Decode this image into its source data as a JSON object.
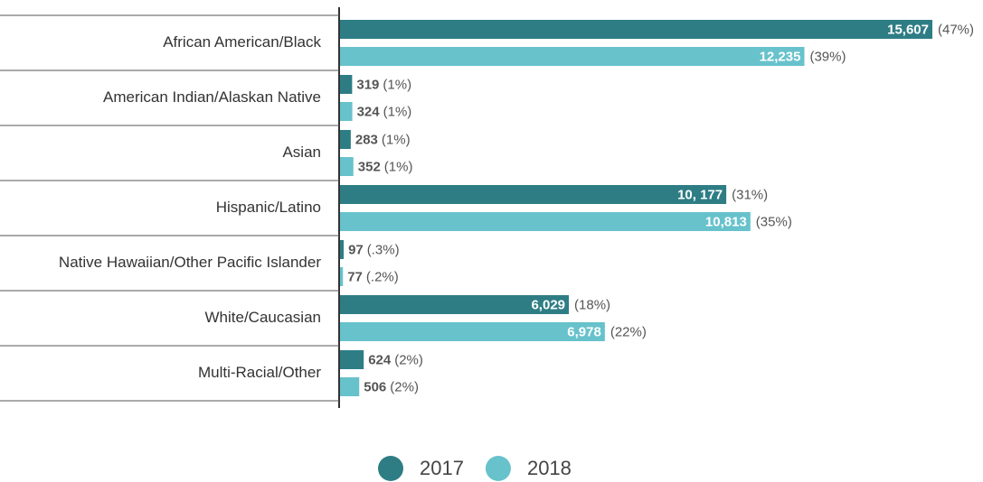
{
  "chart_data": {
    "type": "bar",
    "orientation": "horizontal",
    "categories": [
      "African American/Black",
      "American Indian/Alaskan Native",
      "Asian",
      "Hispanic/Latino",
      "Native Hawaiian/Other Pacific Islander",
      "White/Caucasian",
      "Multi-Racial/Other"
    ],
    "series": [
      {
        "name": "2017",
        "color": "#2e7d85",
        "values": [
          15607,
          319,
          283,
          10177,
          97,
          6029,
          624
        ],
        "value_labels": [
          "15,607",
          "319",
          "283",
          "10, 177",
          "97",
          "6,029",
          "624"
        ],
        "percent_labels": [
          "(47%)",
          "(1%)",
          "(1%)",
          "(31%)",
          "(.3%)",
          "(18%)",
          "(2%)"
        ]
      },
      {
        "name": "2018",
        "color": "#67c2cc",
        "values": [
          12235,
          324,
          352,
          10813,
          77,
          6978,
          506
        ],
        "value_labels": [
          "12,235",
          "324",
          "352",
          "10,813",
          "77",
          "6,978",
          "506"
        ],
        "percent_labels": [
          "(39%)",
          "(1%)",
          "(1%)",
          "(35%)",
          "(.2%)",
          "(22%)",
          "(2%)"
        ]
      }
    ],
    "legend": "bottom"
  }
}
